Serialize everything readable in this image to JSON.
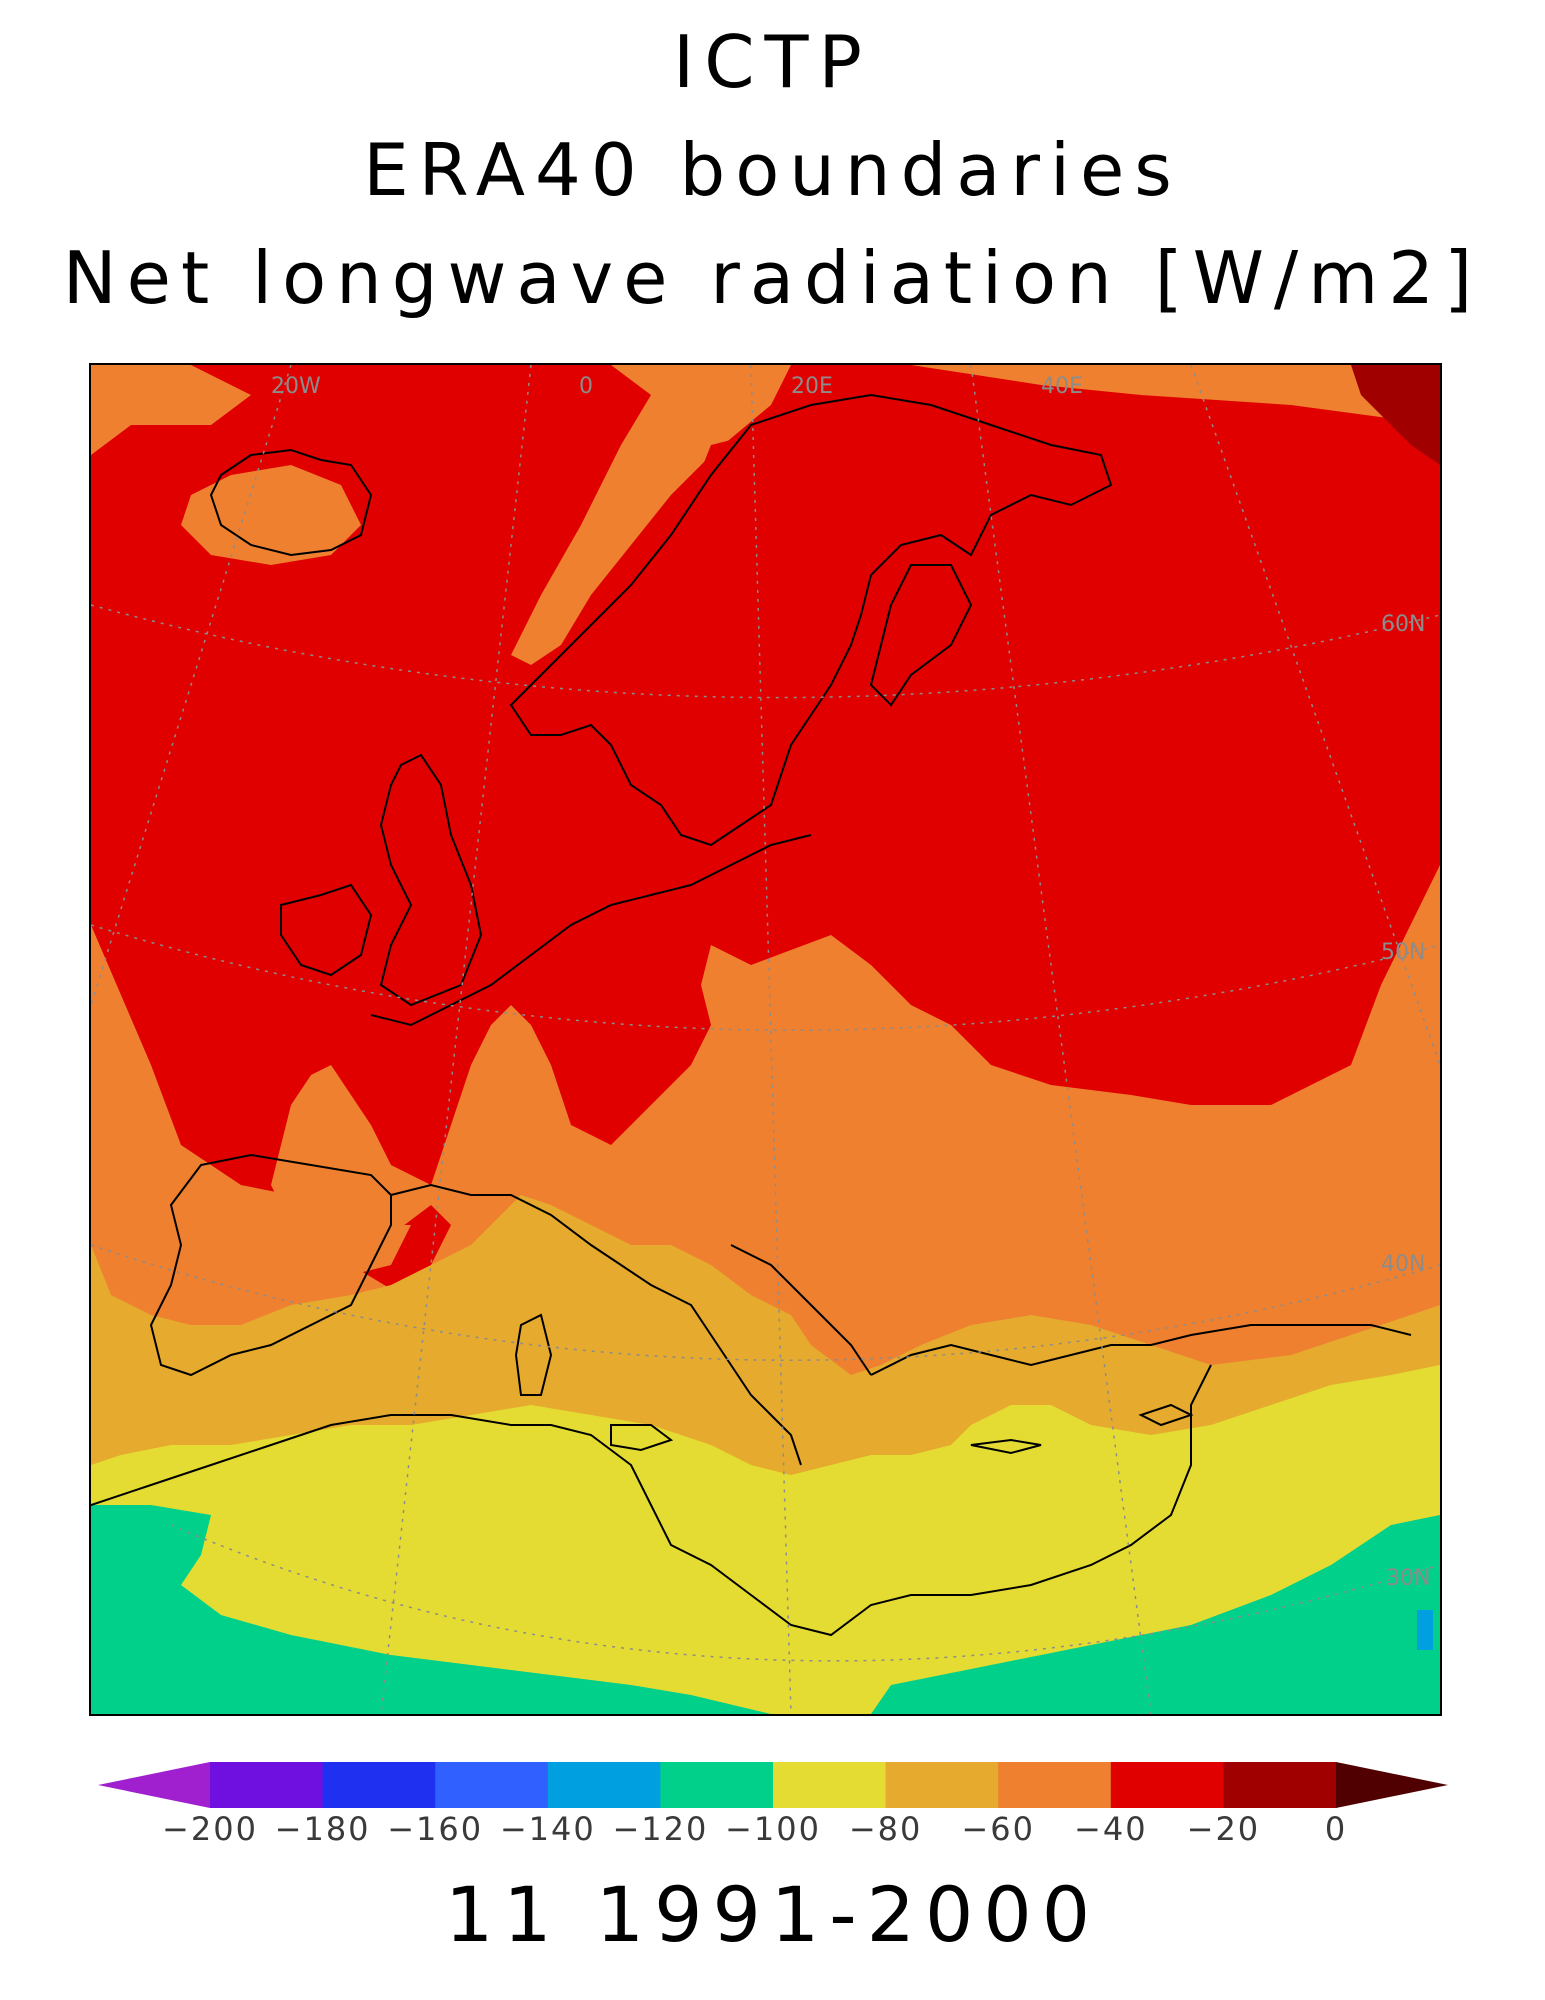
{
  "header": {
    "line1": "ICTP",
    "line2": "ERA40 boundaries",
    "line3": "Net longwave radiation [W/m2]"
  },
  "map": {
    "region": "Europe and Mediterranean",
    "longitude_labels": [
      "20W",
      "0",
      "20E",
      "40E"
    ],
    "latitude_labels": [
      "60N",
      "50N",
      "40N",
      "30N"
    ],
    "colors": {
      "band_0_20": "#e00000",
      "band_20_40": "#e00000",
      "band_40_60": "#ee8030",
      "band_60_80": "#e5aa2e",
      "band_80_100": "#e5dc33",
      "band_100_120": "#00d08a",
      "band_120_140": "#00a0e0",
      "dark_red": "#a00000",
      "coastline": "#000000",
      "gridline": "#8c8c8c"
    }
  },
  "colorbar": {
    "tick_labels": [
      "-200",
      "-180",
      "-160",
      "-140",
      "-120",
      "-100",
      "-80",
      "-60",
      "-40",
      "-20",
      "0"
    ],
    "colors": [
      "#a020d0",
      "#7010e0",
      "#2030f0",
      "#3060ff",
      "#00a0e0",
      "#00d08a",
      "#e5dc33",
      "#e5aa2e",
      "#ee8030",
      "#e00000",
      "#a00000",
      "#500000"
    ]
  },
  "footer": {
    "period": "11 1991-2000"
  }
}
